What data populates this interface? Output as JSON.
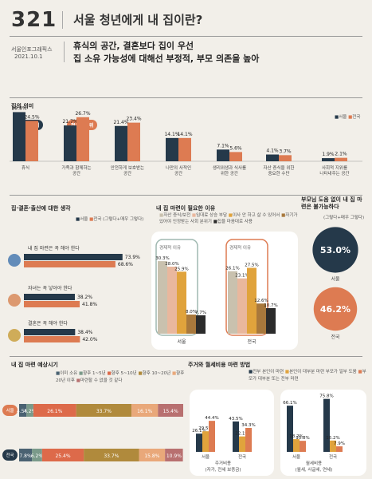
{
  "header": {
    "number": "321",
    "title": "서울 청년에게 내 집이란?",
    "source": "서울인포그래픽스",
    "date": "2021.10.1",
    "subtitle_1": "휴식의 공간, 결혼보다 집이 우선",
    "subtitle_2": "집 소유 가능성에 대해선 부정적, 부모 의존을 높아"
  },
  "colors": {
    "seoul": "#25394a",
    "nation": "#dd7b52",
    "gold": "#e0a33c",
    "brown": "#a8783c",
    "beige": "#c9c1ae",
    "pink": "#e9b79d",
    "black": "#2b2b2b"
  },
  "legend": {
    "seoul": "서울",
    "nation": "전국",
    "seoul_rank": "서울 1순위",
    "nation_rank": "전국 1순위",
    "both_hint": "(그렇다+매우 그렇다)"
  },
  "chart_data": [
    {
      "type": "bar",
      "title": "집의 의미",
      "categories": [
        "휴식",
        "가족과 함께하는 공간",
        "안전하게 보호받는 공간",
        "나만의 사적인 공간",
        "생리위생과 식사를 위한 공간",
        "자산 증식을 위한 중요한 수단",
        "사회적 지위를 나타내주는 공간"
      ],
      "series": [
        {
          "name": "서울",
          "values": [
            29.8,
            21.7,
            21.4,
            14.1,
            7.1,
            4.1,
            1.9
          ]
        },
        {
          "name": "전국",
          "values": [
            24.5,
            26.7,
            23.4,
            14.1,
            5.6,
            3.7,
            2.1
          ]
        }
      ]
    },
    {
      "type": "bar",
      "title": "집·결혼·출산에 대한 생각",
      "categories": [
        "내 집 마련은 꼭 해야 한다",
        "자녀는 꼭 낳아야 한다",
        "결혼은 꼭 해야 한다"
      ],
      "series": [
        {
          "name": "서울",
          "values": [
            73.9,
            38.2,
            38.4
          ]
        },
        {
          "name": "전국",
          "values": [
            68.6,
            41.8,
            42.0
          ]
        }
      ]
    },
    {
      "type": "bar",
      "title": "내 집 마련이 필요한 이유",
      "categories": [
        "서울",
        "전국"
      ],
      "reasons": [
        "자산 증식/보전",
        "임대료 상승 부담",
        "이사 안 하고 살 수 있어서",
        "자기가 있어야 인정받는 사회 분위기",
        "집을 마음대로 사용"
      ],
      "series": [
        {
          "name": "자산 증식/보전",
          "values": [
            30.3,
            26.1
          ]
        },
        {
          "name": "임대료 상승 부담",
          "values": [
            28.0,
            23.1
          ]
        },
        {
          "name": "이사 안 하고 살 수 있어서",
          "values": [
            25.9,
            27.5
          ]
        },
        {
          "name": "자기가 있어야 인정받는 사회 분위기",
          "values": [
            8.0,
            12.6
          ]
        },
        {
          "name": "집을 마음대로 사용",
          "values": [
            7.7,
            10.7
          ]
        }
      ],
      "group_label": "경제적 이유"
    },
    {
      "type": "pie",
      "title": "부모님 도움 없이 내 집 마련은 불가능하다",
      "categories": [
        "서울",
        "전국"
      ],
      "values": [
        53.0,
        46.2
      ]
    },
    {
      "type": "bar",
      "title": "내 집 마련 예상시기",
      "stacked": true,
      "categories": [
        "서울",
        "전국"
      ],
      "legend": [
        "이미 소유",
        "향후 1~5년",
        "향후 5~10년",
        "향후 10~20년",
        "향후 20년 이후",
        "마련할 수 없을 것 같다"
      ],
      "series": [
        {
          "name": "이미 소유",
          "values": [
            4.5,
            7.8
          ]
        },
        {
          "name": "향후 1~5년",
          "values": [
            4.2,
            6.2
          ]
        },
        {
          "name": "향후 5~10년",
          "values": [
            26.1,
            25.4
          ]
        },
        {
          "name": "향후 10~20년",
          "values": [
            33.7,
            33.7
          ]
        },
        {
          "name": "향후 20년 이후",
          "values": [
            16.1,
            15.8
          ]
        },
        {
          "name": "마련할 수 없을 것 같다",
          "values": [
            15.4,
            10.9
          ]
        }
      ]
    },
    {
      "type": "bar",
      "title": "주거와 월세비용 마련 방법",
      "legend": [
        "전부 본인이 마련",
        "본인이 대부분 마련 부모가 일부 도움",
        "부모가 대부분 또는 전부 마련"
      ],
      "groups": [
        {
          "label": "주거비용",
          "sublabel": "(자가, 전세 보증금)",
          "categories": [
            "서울",
            "전국"
          ],
          "series": [
            {
              "name": "전부 본인이 마련",
              "values": [
                26.1,
                43.5
              ]
            },
            {
              "name": "본인이 대부분 마련 부모가 일부 도움",
              "values": [
                29.5,
                22.1
              ]
            },
            {
              "name": "부모가 대부분 또는 전부 마련",
              "values": [
                44.4,
                34.3
              ]
            }
          ]
        },
        {
          "label": "월세비용",
          "sublabel": "(월세, 사글세, 연세)",
          "categories": [
            "서울",
            "전국"
          ],
          "series": [
            {
              "name": "전부 본인이 마련",
              "values": [
                66.1,
                75.8
              ]
            },
            {
              "name": "본인이 대부분 마련 부모가 일부 도움",
              "values": [
                18.2,
                16.2
              ]
            },
            {
              "name": "부모가 대부분 또는 전부 마련",
              "values": [
                15.8,
                7.9
              ]
            }
          ]
        }
      ]
    }
  ]
}
